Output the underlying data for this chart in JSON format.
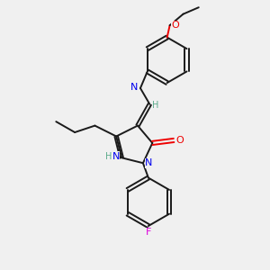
{
  "bg_color": "#f0f0f0",
  "bond_color": "#1a1a1a",
  "n_color": "#0000ee",
  "o_color": "#ee0000",
  "f_color": "#dd00dd",
  "h_color": "#5aaa8a",
  "figsize": [
    3.0,
    3.0
  ],
  "dpi": 100,
  "xlim": [
    0,
    10
  ],
  "ylim": [
    0,
    10
  ]
}
